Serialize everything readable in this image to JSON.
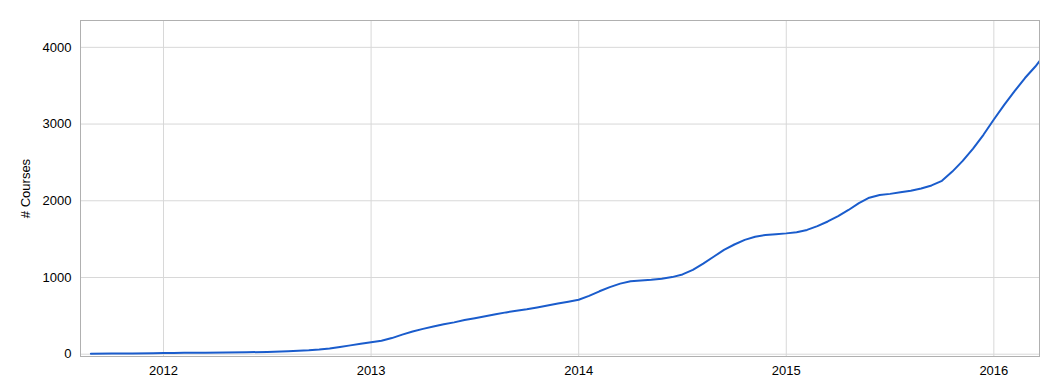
{
  "chart_data": {
    "type": "line",
    "ylabel": "# Courses",
    "color": "#1a5ccc",
    "xlim": [
      2011.6,
      2016.22
    ],
    "xticks": [
      2012,
      2013,
      2014,
      2015,
      2016
    ],
    "ylim": [
      -30,
      4350
    ],
    "yticks": [
      0,
      1000,
      2000,
      3000,
      4000
    ],
    "grid": true,
    "x": [
      2011.65,
      2011.75,
      2011.85,
      2011.95,
      2012.0,
      2012.05,
      2012.1,
      2012.2,
      2012.3,
      2012.4,
      2012.5,
      2012.6,
      2012.7,
      2012.75,
      2012.8,
      2012.85,
      2012.9,
      2012.95,
      2013.0,
      2013.05,
      2013.1,
      2013.15,
      2013.2,
      2013.25,
      2013.3,
      2013.35,
      2013.4,
      2013.45,
      2013.5,
      2013.55,
      2013.6,
      2013.65,
      2013.7,
      2013.75,
      2013.8,
      2013.85,
      2013.9,
      2013.95,
      2014.0,
      2014.05,
      2014.1,
      2014.15,
      2014.2,
      2014.25,
      2014.3,
      2014.35,
      2014.4,
      2014.45,
      2014.5,
      2014.55,
      2014.6,
      2014.65,
      2014.7,
      2014.75,
      2014.8,
      2014.85,
      2014.9,
      2014.95,
      2015.0,
      2015.05,
      2015.1,
      2015.15,
      2015.2,
      2015.25,
      2015.3,
      2015.35,
      2015.4,
      2015.45,
      2015.5,
      2015.55,
      2015.6,
      2015.65,
      2015.7,
      2015.75,
      2015.8,
      2015.85,
      2015.9,
      2015.95,
      2016.0,
      2016.05,
      2016.1,
      2016.15,
      2016.2,
      2016.22
    ],
    "values": [
      5,
      8,
      10,
      13,
      15,
      17,
      18,
      20,
      22,
      25,
      30,
      38,
      50,
      60,
      75,
      95,
      115,
      135,
      155,
      175,
      210,
      255,
      295,
      330,
      360,
      390,
      415,
      445,
      470,
      495,
      520,
      545,
      565,
      585,
      610,
      635,
      660,
      685,
      710,
      760,
      820,
      875,
      920,
      950,
      960,
      970,
      985,
      1005,
      1040,
      1100,
      1180,
      1270,
      1360,
      1430,
      1490,
      1530,
      1555,
      1565,
      1575,
      1590,
      1620,
      1670,
      1730,
      1800,
      1880,
      1970,
      2040,
      2075,
      2090,
      2110,
      2130,
      2160,
      2200,
      2260,
      2380,
      2520,
      2680,
      2860,
      3060,
      3250,
      3430,
      3600,
      3750,
      3820
    ]
  }
}
